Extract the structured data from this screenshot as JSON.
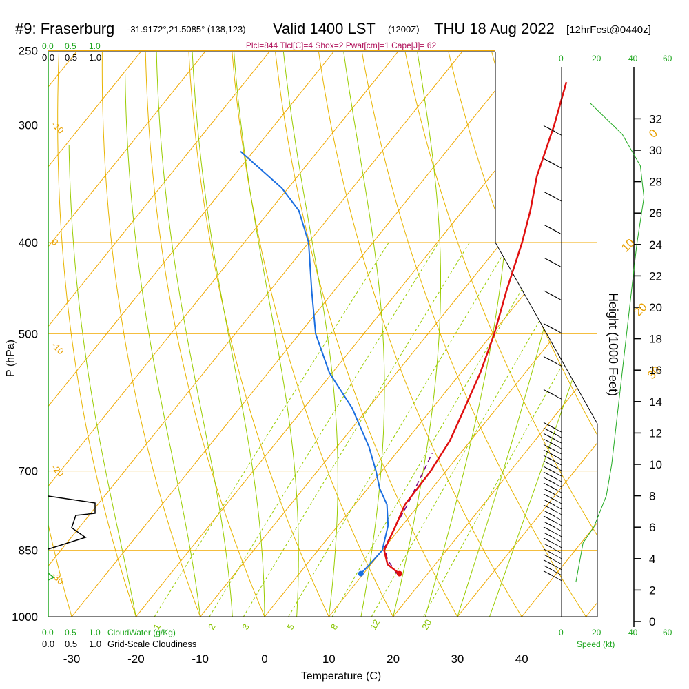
{
  "header": {
    "station_label": "#9: Fraserburg",
    "coords": "-31.9172°,21.5085° (138,123)",
    "valid_label": "Valid 1400 LST",
    "valid_z": "(1200Z)",
    "date": "THU 18 Aug 2022",
    "forecast": "[12hrFcst@0440z]"
  },
  "params_line": "Plcl=844 Tlcl[C]=4 Shox=2 Pwat[cm]=1 Cape[J]= 62",
  "colors": {
    "isotherm": "#f0a800",
    "dry_adiabat": "#e8b400",
    "moist_adiabat": "#99cc00",
    "mixing_ratio": "#99cc00",
    "temperature": "#e01010",
    "dewpoint": "#1a6ee0",
    "parcel": "#7a0080",
    "wind_speed": "#22aa22",
    "green_text": "#1aa51a",
    "params": "#b0105a"
  },
  "chart_data": {
    "type": "skew-t log-p sounding",
    "xlabel": "Temperature (C)",
    "ylabel": "P (hPa)",
    "right_axis_label": "Height (1000 Feet)",
    "x_ticks": [
      -30,
      -20,
      -10,
      0,
      10,
      20,
      30,
      40
    ],
    "p_ticks": [
      250,
      300,
      400,
      500,
      700,
      850,
      1000
    ],
    "height_ticks_kft": [
      0,
      2,
      4,
      6,
      8,
      10,
      12,
      14,
      16,
      18,
      20,
      22,
      24,
      26,
      28,
      30,
      32
    ],
    "isotherm_labels": [
      "-10",
      "0",
      "10",
      "20",
      "30",
      "0",
      "-10",
      "-20",
      "-30"
    ],
    "mixing_ratio_labels": [
      "1",
      "2",
      "3",
      "5",
      "8",
      "12",
      "20"
    ],
    "temperature_profile": [
      {
        "p": 900,
        "t": 15.6
      },
      {
        "p": 880,
        "t": 12.6
      },
      {
        "p": 850,
        "t": 10.3
      },
      {
        "p": 800,
        "t": 9.0
      },
      {
        "p": 760,
        "t": 7.8
      },
      {
        "p": 700,
        "t": 7.6
      },
      {
        "p": 650,
        "t": 6.8
      },
      {
        "p": 600,
        "t": 5.0
      },
      {
        "p": 550,
        "t": 3.0
      },
      {
        "p": 500,
        "t": 0.3
      },
      {
        "p": 450,
        "t": -3.2
      },
      {
        "p": 400,
        "t": -6.8
      },
      {
        "p": 370,
        "t": -9.5
      },
      {
        "p": 340,
        "t": -12.8
      },
      {
        "p": 300,
        "t": -16.5
      },
      {
        "p": 270,
        "t": -20.0
      }
    ],
    "dewpoint_profile": [
      {
        "p": 900,
        "t": 9.6
      },
      {
        "p": 880,
        "t": 9.8
      },
      {
        "p": 850,
        "t": 10.0
      },
      {
        "p": 800,
        "t": 7.8
      },
      {
        "p": 760,
        "t": 5.0
      },
      {
        "p": 730,
        "t": 1.8
      },
      {
        "p": 700,
        "t": -0.9
      },
      {
        "p": 660,
        "t": -5.0
      },
      {
        "p": 600,
        "t": -12.5
      },
      {
        "p": 550,
        "t": -20.5
      },
      {
        "p": 500,
        "t": -27.5
      },
      {
        "p": 450,
        "t": -33.5
      },
      {
        "p": 400,
        "t": -40.0
      },
      {
        "p": 370,
        "t": -45.5
      },
      {
        "p": 350,
        "t": -51.0
      },
      {
        "p": 320,
        "t": -62.0
      }
    ],
    "parcel_profile": [
      {
        "p": 900,
        "t": 15.2
      },
      {
        "p": 870,
        "t": 12.0
      },
      {
        "p": 844,
        "t": 10.0
      },
      {
        "p": 800,
        "t": 9.0
      },
      {
        "p": 760,
        "t": 8.2
      },
      {
        "p": 700,
        "t": 6.5
      },
      {
        "p": 670,
        "t": 5.6
      }
    ],
    "surface_temp": {
      "p": 900,
      "t": 15.6
    },
    "surface_dewpoint": {
      "p": 900,
      "t": 9.6
    },
    "cloud_axis_ticks": [
      "0.0",
      "0.5",
      "1.0"
    ],
    "cloud_water_label": "CloudWater (g/Kg)",
    "cloudiness_label": "Grid-Scale Cloudiness",
    "speed_ticks": [
      "0",
      "20",
      "40",
      "60"
    ],
    "speed_label": "Speed (kt)",
    "wind_profile_kt": [
      {
        "kft": 2.5,
        "kt": 8
      },
      {
        "kft": 5,
        "kt": 12
      },
      {
        "kft": 6,
        "kt": 18
      },
      {
        "kft": 8,
        "kt": 25
      },
      {
        "kft": 10,
        "kt": 28
      },
      {
        "kft": 12,
        "kt": 30
      },
      {
        "kft": 16,
        "kt": 34
      },
      {
        "kft": 20,
        "kt": 38
      },
      {
        "kft": 24,
        "kt": 42
      },
      {
        "kft": 27,
        "kt": 46
      },
      {
        "kft": 29,
        "kt": 44
      },
      {
        "kft": 31,
        "kt": 34
      },
      {
        "kft": 33,
        "kt": 16
      }
    ]
  }
}
